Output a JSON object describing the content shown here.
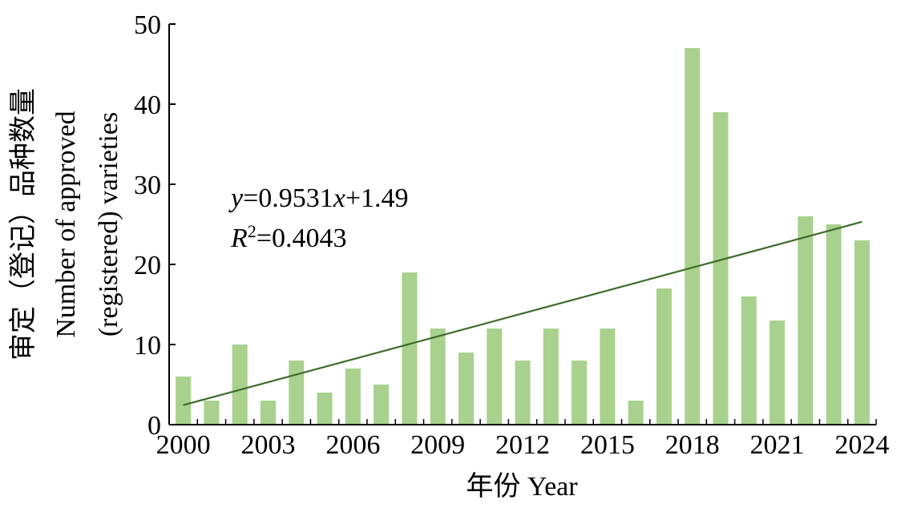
{
  "chart_data": {
    "type": "bar",
    "title": "",
    "xlabel": "年份 Year",
    "ylabel_lines": [
      "审定（登记）品种数量",
      "Number of approved",
      "(registered) varieties"
    ],
    "x": [
      2000,
      2001,
      2002,
      2003,
      2004,
      2005,
      2006,
      2007,
      2008,
      2009,
      2010,
      2011,
      2012,
      2013,
      2014,
      2015,
      2016,
      2017,
      2018,
      2019,
      2020,
      2021,
      2022,
      2023,
      2024
    ],
    "values": [
      6,
      3,
      10,
      3,
      8,
      4,
      7,
      5,
      19,
      12,
      9,
      12,
      8,
      12,
      8,
      12,
      3,
      17,
      47,
      39,
      16,
      13,
      26,
      25,
      23
    ],
    "xticks": [
      "2000",
      "2003",
      "2006",
      "2009",
      "2012",
      "2015",
      "2018",
      "2021",
      "2024"
    ],
    "yticks": [
      "0",
      "10",
      "20",
      "30",
      "40",
      "50"
    ],
    "ylim": [
      0,
      50
    ],
    "grid": false,
    "legend": "none",
    "bar_color": "#a9d18e",
    "trend_color": "#3d6b2a",
    "trendline": {
      "slope": 0.9531,
      "intercept": 1.49,
      "equation": {
        "y": "y",
        "eq_mid": "=0.9531",
        "x": "x",
        "eq_end": "+1.49"
      },
      "r2": {
        "R": "R",
        "sup": "2",
        "rest": "=0.4043"
      }
    }
  }
}
